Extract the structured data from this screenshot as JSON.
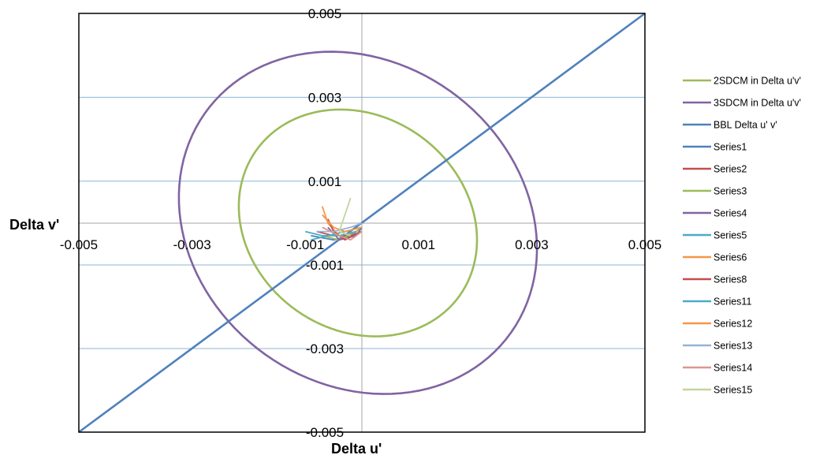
{
  "chart_data": {
    "type": "scatter",
    "xlabel": "Delta u'",
    "ylabel": "Delta v'",
    "xlim": [
      -0.005,
      0.005
    ],
    "ylim": [
      -0.005,
      0.005
    ],
    "grid": "horizontal",
    "legend_position": "right",
    "x_ticks": [
      {
        "value": -0.005,
        "label": "-0.005"
      },
      {
        "value": -0.003,
        "label": "-0.003"
      },
      {
        "value": -0.001,
        "label": "-0.001"
      },
      {
        "value": 0.001,
        "label": "0.001"
      },
      {
        "value": 0.003,
        "label": "0.003"
      },
      {
        "value": 0.005,
        "label": "0.005"
      }
    ],
    "y_ticks": [
      {
        "value": 0.005,
        "label": "0.005"
      },
      {
        "value": 0.003,
        "label": "0.003"
      },
      {
        "value": 0.001,
        "label": "0.001"
      },
      {
        "value": -0.001,
        "label": "-0.001"
      },
      {
        "value": -0.003,
        "label": "-0.003"
      },
      {
        "value": -0.005,
        "label": "-0.005"
      }
    ],
    "gridlines_y": [
      0.003,
      0.001,
      -0.001,
      -0.003
    ],
    "series": [
      {
        "name": "2SDCM in Delta u'v'",
        "color": "#9bbb59",
        "kind": "ellipse",
        "center": [
          -7e-05,
          0.0
        ],
        "semi_axes": [
          0.00205,
          0.00275
        ],
        "rotation_deg": 15
      },
      {
        "name": "3SDCM in Delta u'v'",
        "color": "#8064a2",
        "kind": "ellipse",
        "center": [
          -7e-05,
          0.0
        ],
        "semi_axes": [
          0.00308,
          0.00415
        ],
        "rotation_deg": 15
      },
      {
        "name": "BBL Delta u' v'",
        "color": "#4f81bd",
        "kind": "line",
        "points": [
          [
            -0.005,
            -0.0059
          ],
          [
            0.005,
            0.0053
          ]
        ]
      },
      {
        "name": "Series1",
        "color": "#4f81bd",
        "kind": "line",
        "points": [
          [
            -0.0009,
            -0.0003
          ],
          [
            -0.0005,
            -0.0004
          ],
          [
            -0.0002,
            -0.0003
          ],
          [
            0.0,
            -0.0002
          ]
        ]
      },
      {
        "name": "Series2",
        "color": "#c0504d",
        "kind": "line",
        "points": [
          [
            -0.0008,
            -0.0002
          ],
          [
            -0.0005,
            -0.0003
          ],
          [
            -0.0002,
            -0.0003
          ],
          [
            0.0,
            -0.0001
          ]
        ]
      },
      {
        "name": "Series3",
        "color": "#9bbb59",
        "kind": "line",
        "points": [
          [
            -0.0007,
            -0.0003
          ],
          [
            -0.0004,
            -0.0004
          ],
          [
            -0.0001,
            -0.0002
          ],
          [
            0.0,
            -0.0001
          ]
        ]
      },
      {
        "name": "Series4",
        "color": "#8064a2",
        "kind": "line",
        "points": [
          [
            -0.0006,
            -0.0001
          ],
          [
            -0.0004,
            -0.0004
          ],
          [
            -0.0001,
            -0.0003
          ],
          [
            0.0,
            -0.0001
          ]
        ]
      },
      {
        "name": "Series5",
        "color": "#4bacc6",
        "kind": "line",
        "points": [
          [
            -0.0009,
            -0.0004
          ],
          [
            -0.0006,
            -0.0003
          ],
          [
            -0.0003,
            -0.0002
          ],
          [
            0.0,
            -0.0001
          ]
        ]
      },
      {
        "name": "Series6",
        "color": "#f79646",
        "kind": "line",
        "points": [
          [
            -0.0007,
            0.0004
          ],
          [
            -0.0006,
            0.0
          ],
          [
            -0.0004,
            -0.0003
          ],
          [
            -0.0001,
            -0.0002
          ]
        ]
      },
      {
        "name": "Series8",
        "color": "#c0504d",
        "kind": "line",
        "points": [
          [
            -0.0006,
            0.0001
          ],
          [
            -0.0005,
            -0.0002
          ],
          [
            -0.0003,
            -0.0004
          ],
          [
            0.0,
            -0.0002
          ]
        ]
      },
      {
        "name": "Series11",
        "color": "#4bacc6",
        "kind": "line",
        "points": [
          [
            -0.001,
            -0.0002
          ],
          [
            -0.0007,
            -0.0003
          ],
          [
            -0.0004,
            -0.0003
          ],
          [
            -0.0001,
            -0.0002
          ]
        ]
      },
      {
        "name": "Series12",
        "color": "#f79646",
        "kind": "line",
        "points": [
          [
            -0.0007,
            0.0002
          ],
          [
            -0.0005,
            -0.0001
          ],
          [
            -0.0003,
            -0.0002
          ],
          [
            0.0,
            -0.0001
          ]
        ]
      },
      {
        "name": "Series13",
        "color": "#95b3d7",
        "kind": "line",
        "points": [
          [
            -0.0008,
            -0.0002
          ],
          [
            -0.0005,
            -0.0002
          ],
          [
            -0.0002,
            -0.0001
          ],
          [
            0.0,
            0.0
          ]
        ]
      },
      {
        "name": "Series14",
        "color": "#d99694",
        "kind": "line",
        "points": [
          [
            -0.0007,
            -0.0001
          ],
          [
            -0.0004,
            -0.0003
          ],
          [
            -0.0002,
            -0.0004
          ],
          [
            0.0,
            -0.0002
          ]
        ]
      },
      {
        "name": "Series15",
        "color": "#c3d69b",
        "kind": "line",
        "points": [
          [
            -0.0002,
            0.0006
          ],
          [
            -0.0003,
            0.0002
          ],
          [
            -0.0004,
            -0.0002
          ],
          [
            -0.0002,
            -0.0003
          ]
        ]
      }
    ]
  }
}
